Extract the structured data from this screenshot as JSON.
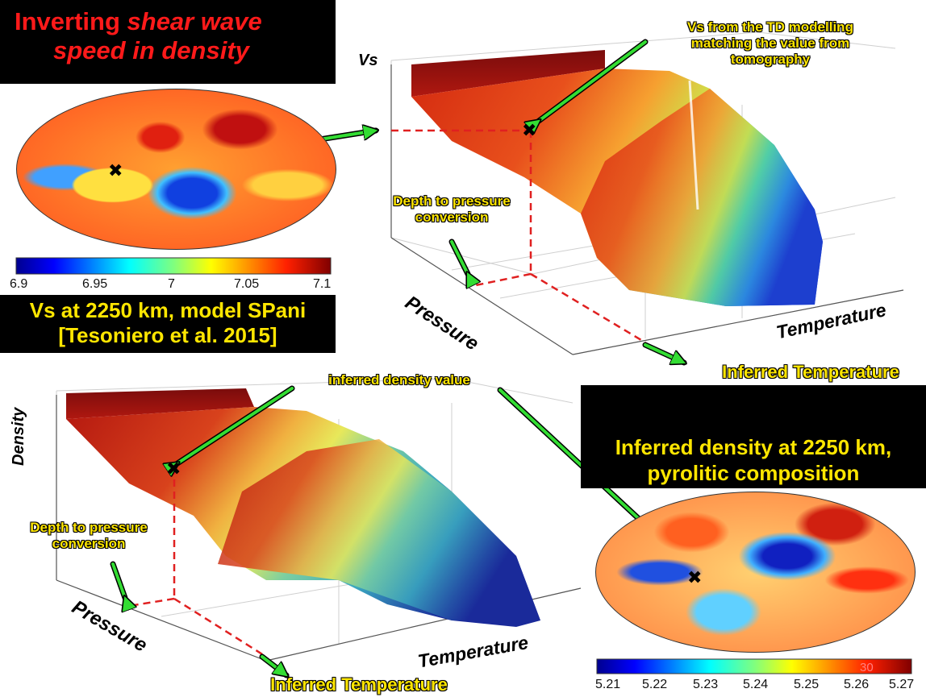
{
  "title": {
    "line1_normal": "Inverting ",
    "line1_italic": "shear wave",
    "line2_italic": "speed in density"
  },
  "vs_map": {
    "caption_line1": "Vs at 2250 km, model SPani",
    "caption_line2": "[Tesoniero et al. 2015]",
    "ticks": [
      "6.9",
      "6.95",
      "7",
      "7.05",
      "7.1"
    ]
  },
  "top_plot": {
    "axis_vs": "Vs",
    "axis_pressure": "Pressure",
    "axis_temperature": "Temperature",
    "note_vs_line1": "Vs from the TD modelling",
    "note_vs_line2": "matching the value from",
    "note_vs_line3": "tomography",
    "note_depth_line1": "Depth to pressure",
    "note_depth_line2": "conversion",
    "note_inferred_temp": "Inferred Temperature"
  },
  "bottom_plot": {
    "axis_density": "Density",
    "axis_pressure": "Pressure",
    "axis_temperature": "Temperature",
    "note_density": "inferred density value",
    "note_depth_line1": "Depth to pressure",
    "note_depth_line2": "conversion",
    "note_inferred_temp": "Inferred Temperature"
  },
  "density_map": {
    "caption_line1": "Inferred density at 2250 km,",
    "caption_line2": "pyrolitic composition",
    "ticks": [
      "5.21",
      "5.22",
      "5.23",
      "5.24",
      "5.25",
      "5.26",
      "5.27"
    ]
  },
  "marker_symbol": "✖",
  "page_number": "30",
  "colors": {
    "title_red": "#ff1a1a",
    "caption_yellow": "#ffe600",
    "arrow_green": "#33dd33",
    "guide_red": "#e02020"
  }
}
